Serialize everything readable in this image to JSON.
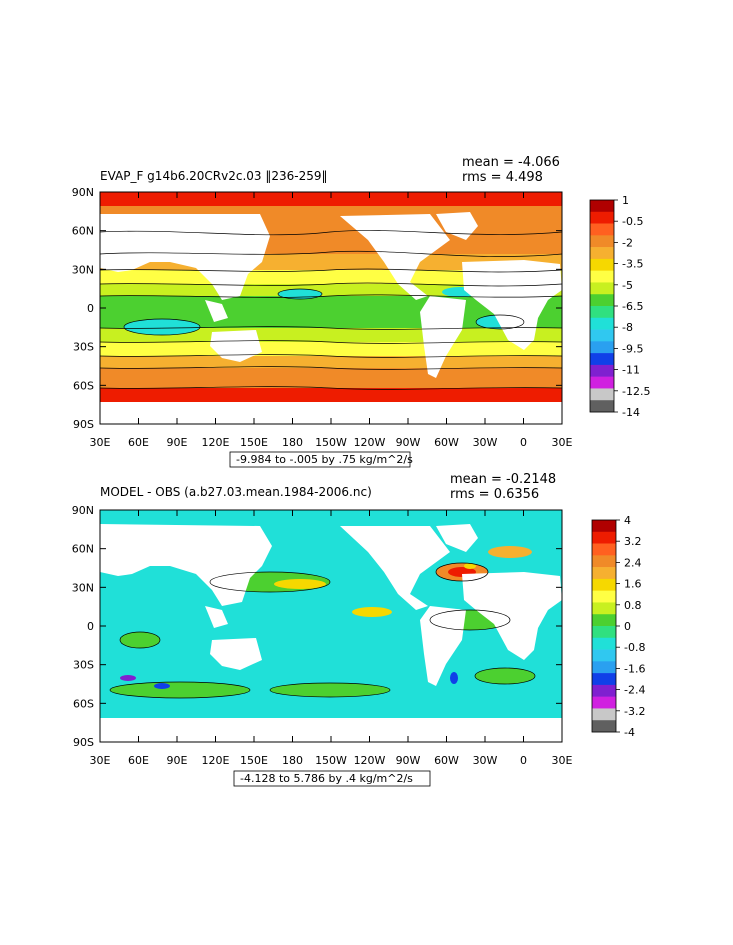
{
  "panels": [
    {
      "title": "EVAP_F g14b6.20CRv2c.03 ‖236-259‖",
      "mean": "mean = -4.066",
      "rms": "rms = 4.498",
      "range_label": "-9.984 to -.005 by .75 kg/m^2/s",
      "lat_labels": [
        "90N",
        "60N",
        "30N",
        "0",
        "30S",
        "60S",
        "90S"
      ],
      "lon_labels": [
        "30E",
        "60E",
        "90E",
        "120E",
        "150E",
        "180",
        "150W",
        "120W",
        "90W",
        "60W",
        "30W",
        "0",
        "30E"
      ],
      "colorbar": {
        "labels": [
          "1",
          "-0.5",
          "-2",
          "-3.5",
          "-5",
          "-6.5",
          "-8",
          "-9.5",
          "-11",
          "-12.5",
          "-14"
        ],
        "colors": [
          "#b00000",
          "#ee1c00",
          "#ff6020",
          "#f08a28",
          "#f6b030",
          "#f6d800",
          "#ffff44",
          "#c8f020",
          "#4cd030",
          "#30e080",
          "#20e0d8",
          "#30c8f0",
          "#2aa0f0",
          "#1040e8",
          "#8020d0",
          "#d020e0",
          "#c8c8c8",
          "#606060"
        ]
      }
    },
    {
      "title": "MODEL - OBS (a.b27.03.mean.1984-2006.nc)",
      "mean": "mean = -0.2148",
      "rms": "rms = 0.6356",
      "range_label": "-4.128 to 5.786 by .4 kg/m^2/s",
      "lat_labels": [
        "90N",
        "60N",
        "30N",
        "0",
        "30S",
        "60S",
        "90S"
      ],
      "lon_labels": [
        "30E",
        "60E",
        "90E",
        "120E",
        "150E",
        "180",
        "150W",
        "120W",
        "90W",
        "60W",
        "30W",
        "0",
        "30E"
      ],
      "colorbar": {
        "labels": [
          "4",
          "3.2",
          "2.4",
          "1.6",
          "0.8",
          "0",
          "-0.8",
          "-1.6",
          "-2.4",
          "-3.2",
          "-4"
        ],
        "colors": [
          "#b00000",
          "#ee1c00",
          "#ff6020",
          "#f08a28",
          "#f6b030",
          "#f6d800",
          "#ffff44",
          "#c8f020",
          "#4cd030",
          "#30e080",
          "#20e0d8",
          "#30c8f0",
          "#2aa0f0",
          "#1040e8",
          "#8020d0",
          "#d020e0",
          "#c8c8c8",
          "#606060"
        ]
      }
    }
  ]
}
